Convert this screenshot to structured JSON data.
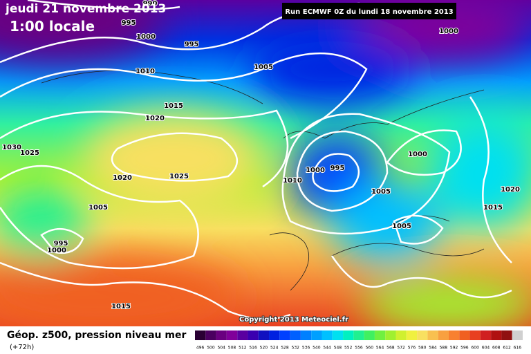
{
  "header": {
    "title": "jeudi 21 novembre 2013",
    "subtitle": "1:00 locale",
    "run_info": "Run ECMWF 0Z du lundi 18 novembre 2013"
  },
  "isobar_labels": [
    "990",
    "995",
    "1000",
    "995",
    "1010",
    "1005",
    "1015",
    "1020",
    "1030",
    "1025",
    "1020",
    "1025",
    "1000",
    "995",
    "1010",
    "1000",
    "1005",
    "1020",
    "1015",
    "1005",
    "1005",
    "995",
    "1000",
    "1015",
    "1000"
  ],
  "copyright": "Copyright 2013 Meteociel.fr",
  "footer": {
    "title": "Géop. z500, pression niveau mer",
    "lead_time": "(+72h)"
  },
  "scale": {
    "labels": [
      "496",
      "500",
      "504",
      "508",
      "512",
      "516",
      "520",
      "524",
      "528",
      "532",
      "536",
      "540",
      "544",
      "548",
      "552",
      "556",
      "560",
      "564",
      "568",
      "572",
      "576",
      "580",
      "584",
      "588",
      "592",
      "596",
      "600",
      "604",
      "608",
      "612",
      "616"
    ],
    "colors": [
      "#2a0033",
      "#4b0060",
      "#6a0080",
      "#80009a",
      "#5a00a0",
      "#3a00b0",
      "#1010c0",
      "#0020e0",
      "#0040ff",
      "#0060ff",
      "#0080ff",
      "#00a0ff",
      "#00c0ff",
      "#00e0f0",
      "#00f0c0",
      "#20f090",
      "#40f060",
      "#70f040",
      "#a0f030",
      "#d0f030",
      "#f0f040",
      "#f8e060",
      "#f8c050",
      "#f8a040",
      "#f88030",
      "#f06020",
      "#e84020",
      "#d02020",
      "#b01010",
      "#901010",
      "#d0d0d0"
    ]
  }
}
